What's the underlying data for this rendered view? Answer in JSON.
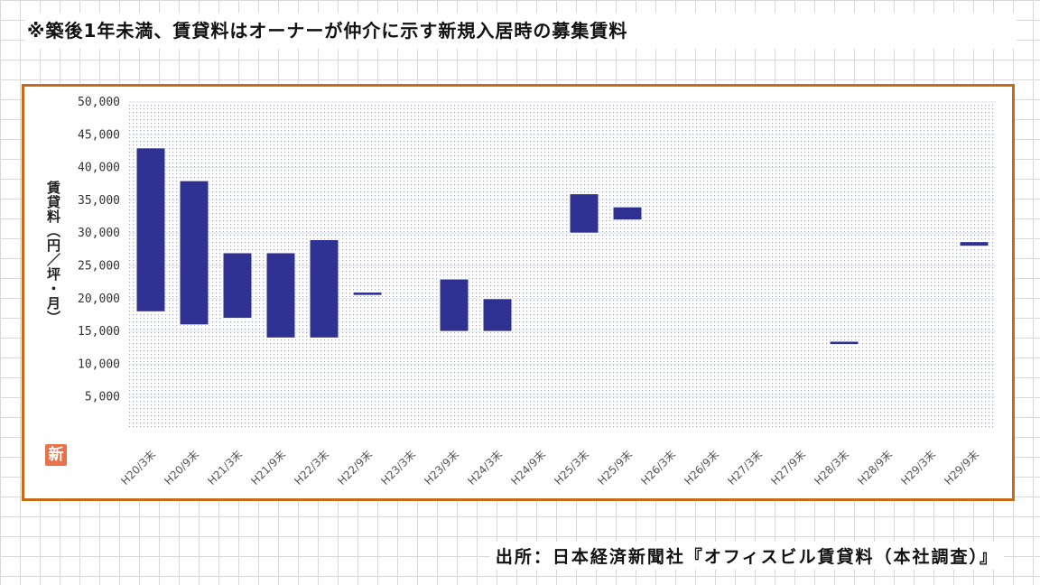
{
  "note": "※築後1年未満、賃貸料はオーナーが仲介に示す新規入居時の募集賃料",
  "source": "出所：日本経済新聞社『オフィスビル賃貸料（本社調査）』",
  "logo_text": "新",
  "bar_color": "#2e3192",
  "frame_color": "#c9691a",
  "chart_data": {
    "type": "bar",
    "subtype": "floating-range",
    "ylabel": "賃貸料（円／坪・月）",
    "ylim": [
      0,
      50000
    ],
    "yticks": [
      "5,000",
      "10,000",
      "15,000",
      "20,000",
      "25,000",
      "30,000",
      "35,000",
      "40,000",
      "45,000",
      "50,000"
    ],
    "ytick_values": [
      5000,
      10000,
      15000,
      20000,
      25000,
      30000,
      35000,
      40000,
      45000,
      50000
    ],
    "categories": [
      "H20/3末",
      "H20/9末",
      "H21/3末",
      "H21/9末",
      "H22/3末",
      "H22/9末",
      "H23/3末",
      "H23/9末",
      "H24/3末",
      "H24/9末",
      "H25/3末",
      "H25/9末",
      "H26/3末",
      "H26/9末",
      "H27/3末",
      "H27/9末",
      "H28/3末",
      "H28/9末",
      "H29/3末",
      "H29/9末"
    ],
    "ranges": [
      [
        18000,
        43000
      ],
      [
        16000,
        38000
      ],
      [
        17000,
        27000
      ],
      [
        14000,
        27000
      ],
      [
        14000,
        29000
      ],
      [
        20500,
        21000
      ],
      null,
      [
        15000,
        23000
      ],
      [
        15000,
        20000
      ],
      null,
      [
        30000,
        36000
      ],
      [
        32000,
        34000
      ],
      null,
      null,
      null,
      null,
      [
        13000,
        13500
      ],
      null,
      null,
      [
        28000,
        28700
      ]
    ],
    "grid": true,
    "legend": "none"
  }
}
